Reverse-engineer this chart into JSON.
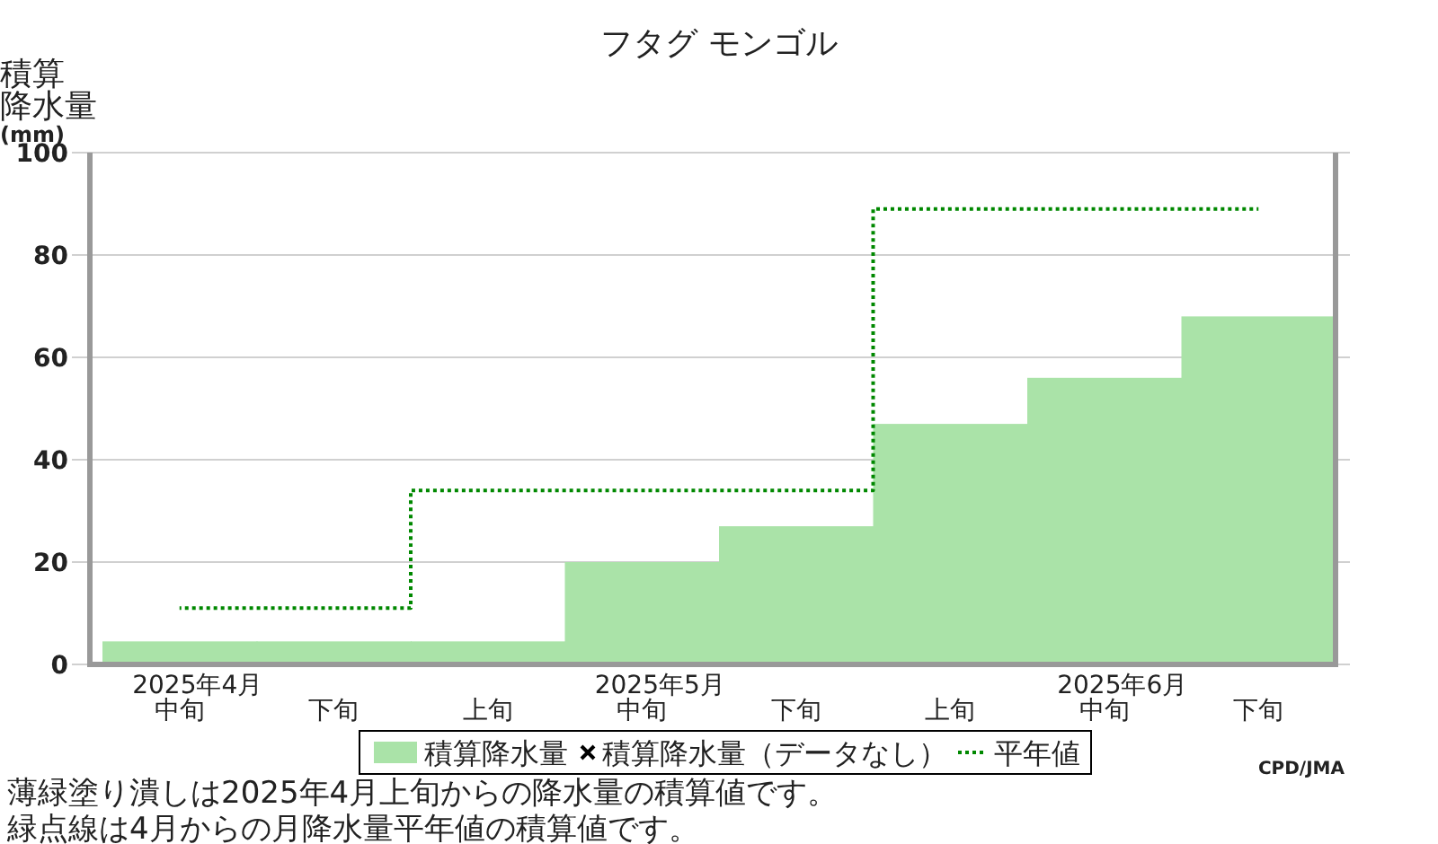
{
  "chart_data": {
    "type": "bar",
    "title": "フタグ モンゴル",
    "ylabel": "積算降水量$_{(mm)}$",
    "categories": [
      "中旬",
      "下旬",
      "上旬",
      "中旬",
      "下旬",
      "上旬",
      "中旬",
      "下旬"
    ],
    "series": [
      {
        "name": "積算降水量",
        "color": "#aae3a8",
        "values": [
          4.5,
          4.5,
          4.5,
          20,
          27,
          47,
          56,
          68
        ]
      },
      {
        "name": "積算降水量（データなし）",
        "type": "scatter",
        "marker": "cross",
        "color": "#000000",
        "values": [
          null,
          null,
          null,
          null,
          null,
          null,
          null,
          null
        ]
      },
      {
        "name": "平年値",
        "type": "step",
        "color": "#008800",
        "line_style": "dotted",
        "values": [
          11,
          11,
          34,
          34,
          34,
          89,
          89,
          89
        ]
      }
    ],
    "ylim": [
      0,
      100
    ],
    "yticks": [
      0,
      20,
      40,
      60,
      80,
      100
    ],
    "grid": "y",
    "legend": "bottom",
    "annotations": [
      "2025年4月",
      "2025年5月",
      "2025年6月",
      "CPD/JMA",
      "薄緑塗り潰しは2025年4月上旬からの降水量の積算値です。",
      "緑点線は4月からの月降水量平年値の積算値です。"
    ]
  }
}
